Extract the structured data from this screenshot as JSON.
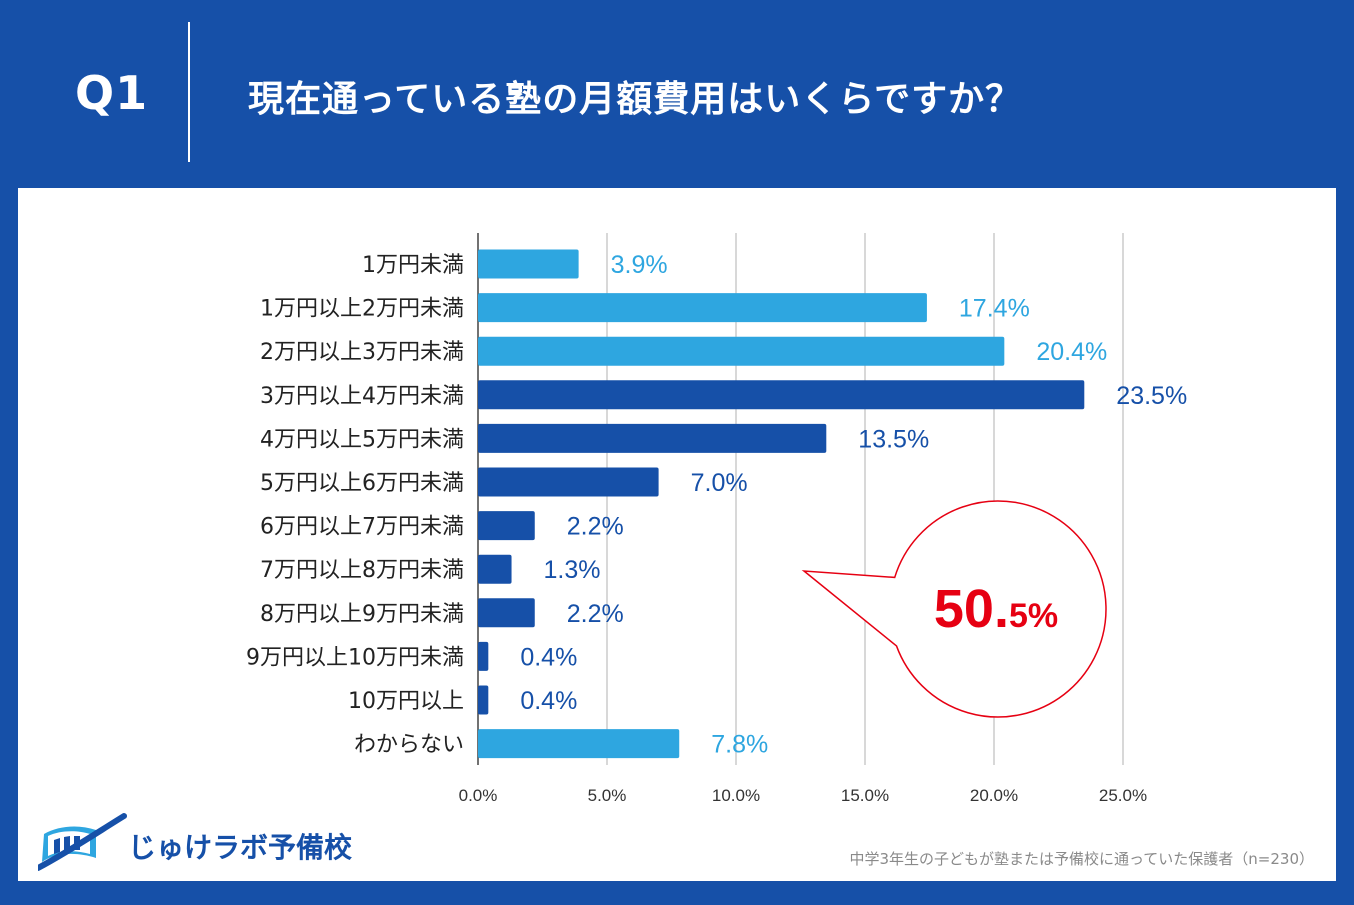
{
  "header": {
    "q_label": "Q1",
    "question": "現在通っている塾の月額費用はいくらですか？"
  },
  "chart_data": {
    "type": "bar",
    "orientation": "horizontal",
    "categories": [
      "1万円未満",
      "1万円以上2万円未満",
      "2万円以上3万円未満",
      "3万円以上4万円未満",
      "4万円以上5万円未満",
      "5万円以上6万円未満",
      "6万円以上7万円未満",
      "7万円以上8万円未満",
      "8万円以上9万円未満",
      "9万円以上10万円未満",
      "10万円以上",
      "わからない"
    ],
    "values": [
      3.9,
      17.4,
      20.4,
      23.5,
      13.5,
      7.0,
      2.2,
      1.3,
      2.2,
      0.4,
      0.4,
      7.8
    ],
    "value_labels": [
      "3.9%",
      "17.4%",
      "20.4%",
      "23.5%",
      "13.5%",
      "7.0%",
      "2.2%",
      "1.3%",
      "2.2%",
      "0.4%",
      "0.4%",
      "7.8%"
    ],
    "bar_colors": [
      "#2ea6e0",
      "#2ea6e0",
      "#2ea6e0",
      "#1650a8",
      "#1650a8",
      "#1650a8",
      "#1650a8",
      "#1650a8",
      "#1650a8",
      "#1650a8",
      "#1650a8",
      "#2ea6e0"
    ],
    "xlim": [
      0,
      25
    ],
    "xticks": [
      0,
      5,
      10,
      15,
      20,
      25
    ],
    "xtick_labels": [
      "0.0%",
      "5.0%",
      "10.0%",
      "15.0%",
      "20.0%",
      "25.0%"
    ],
    "grid": true,
    "callout": {
      "big": "50.",
      "small": "5%",
      "color": "#e60012"
    }
  },
  "brand": {
    "name": "じゅけラボ予備校"
  },
  "footnote": "中学3年生の子どもが塾または予備校に通っていた保護者（n=230）"
}
